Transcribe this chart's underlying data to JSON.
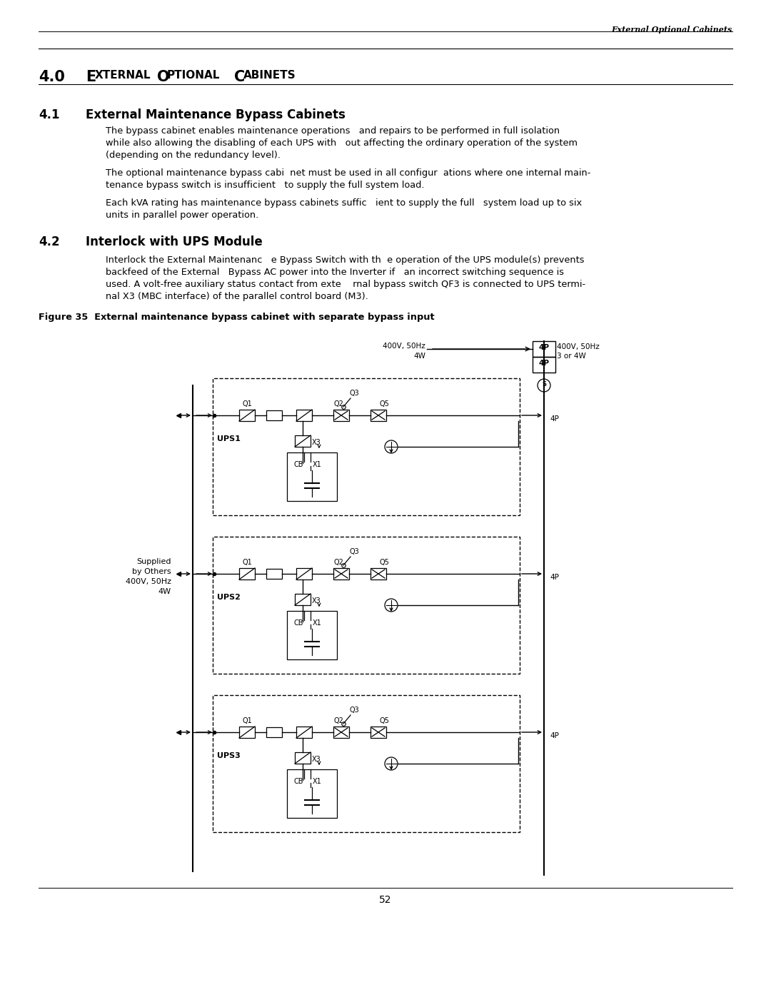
{
  "page_header_right": "External Optional Cabinets",
  "section_number": "4.0",
  "section_title": "External Optional Cabinets",
  "subsection_4_1_number": "4.1",
  "subsection_4_1_title": "External Maintenance Bypass Cabinets",
  "para_4_1_1a": "The bypass cabinet enables maintenance operations   and repairs to be performed in full isolation",
  "para_4_1_1b": "while also allowing the disabling of each UPS with   out affecting the ordinary operation of the system",
  "para_4_1_1c": "(depending on the redundancy level).",
  "para_4_1_2a": "The optional maintenance bypass cabi  net must be used in all configur  ations where one internal main-",
  "para_4_1_2b": "tenance bypass switch is insufficient   to supply the full system load.",
  "para_4_1_3a": "Each kVA rating has maintenance bypass cabinets suffic   ient to supply the full   system load up to six",
  "para_4_1_3b": "units in parallel power operation.",
  "subsection_4_2_number": "4.2",
  "subsection_4_2_title": "Interlock with UPS Module",
  "para_4_2_1a": "Interlock the External Maintenanc   e Bypass Switch with th  e operation of the UPS module(s) prevents",
  "para_4_2_1b": "backfeed of the External   Bypass AC power into the Inverter if   an incorrect switching sequence is",
  "para_4_2_1c": "used. A volt-free auxiliary status contact from exte    rnal bypass switch QF3 is connected to UPS termi-",
  "para_4_2_1d": "nal X3 (MBC interface) of the parallel control board (M3).",
  "figure_caption": "Figure 35  External maintenance bypass cabinet with separate bypass input",
  "page_number": "52",
  "bg_color": "#ffffff"
}
